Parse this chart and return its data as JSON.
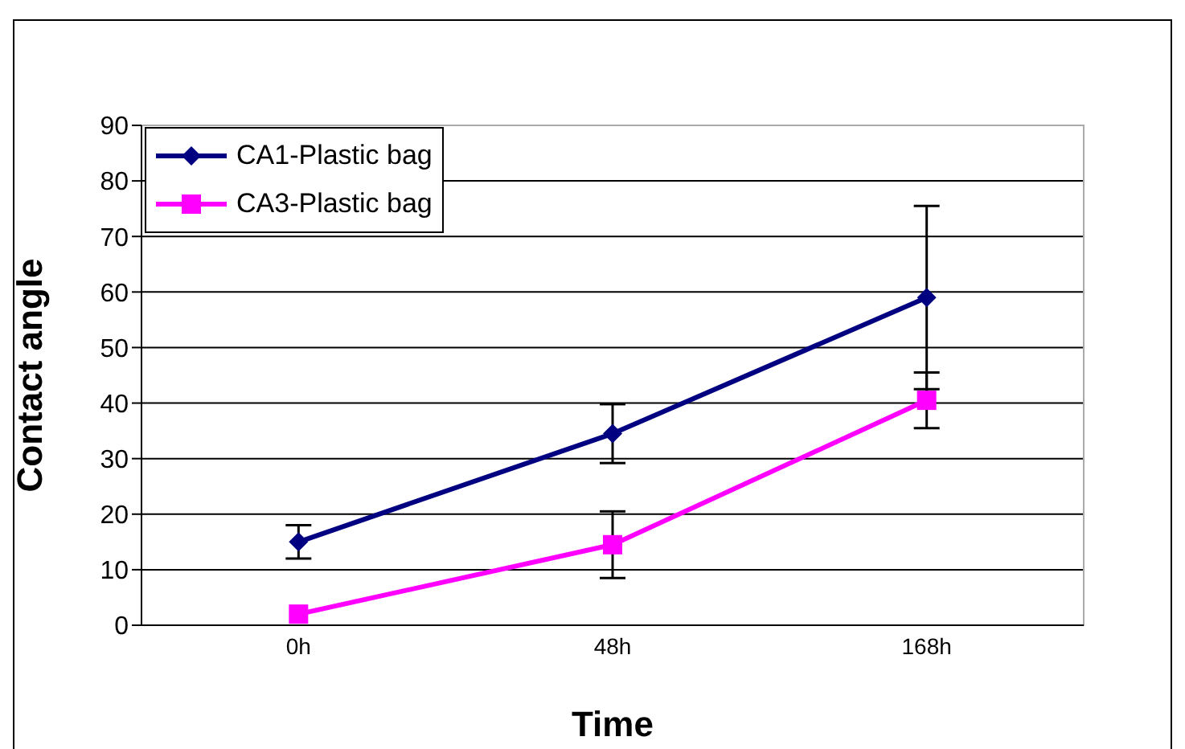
{
  "chart_data": {
    "type": "line",
    "xlabel": "Time",
    "ylabel": "Contact angle",
    "categories": [
      "0h",
      "48h",
      "168h"
    ],
    "series": [
      {
        "name": "CA1-Plastic bag",
        "color": "#000080",
        "marker": "diamond",
        "values": [
          15,
          34.5,
          59
        ],
        "errors": [
          3,
          5.3,
          16.5
        ]
      },
      {
        "name": "CA3-Plastic bag",
        "color": "#ff00ff",
        "marker": "square",
        "values": [
          2,
          14.5,
          40.5
        ],
        "errors": [
          null,
          6,
          5
        ]
      }
    ],
    "ylim": [
      0,
      90
    ],
    "yticks": [
      0,
      10,
      20,
      30,
      40,
      50,
      60,
      70,
      80,
      90
    ],
    "grid": "y",
    "legend": "top left"
  }
}
